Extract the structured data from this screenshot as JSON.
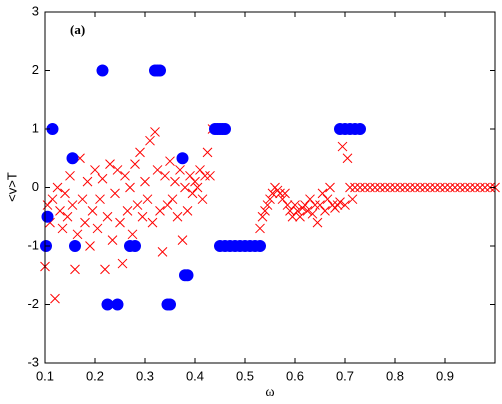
{
  "chart_data": {
    "type": "scatter",
    "annotation": "(a)",
    "xlabel": "ω",
    "ylabel": "<v>T",
    "xlim": [
      0.1,
      1.0
    ],
    "xticks": [
      0.1,
      0.2,
      0.3,
      0.4,
      0.5,
      0.6,
      0.7,
      0.8,
      0.9
    ],
    "ylim": [
      -3,
      3
    ],
    "yticks": [
      -3,
      -2,
      -1,
      0,
      1,
      2,
      3
    ],
    "series": [
      {
        "color": "#ff0000",
        "marker": "x",
        "x": [
          0.1,
          0.105,
          0.11,
          0.115,
          0.12,
          0.125,
          0.13,
          0.135,
          0.14,
          0.145,
          0.15,
          0.155,
          0.16,
          0.165,
          0.17,
          0.175,
          0.18,
          0.185,
          0.19,
          0.195,
          0.2,
          0.205,
          0.21,
          0.215,
          0.22,
          0.225,
          0.23,
          0.235,
          0.24,
          0.245,
          0.25,
          0.255,
          0.26,
          0.265,
          0.27,
          0.275,
          0.28,
          0.285,
          0.29,
          0.295,
          0.3,
          0.305,
          0.31,
          0.315,
          0.32,
          0.325,
          0.33,
          0.335,
          0.34,
          0.345,
          0.35,
          0.355,
          0.36,
          0.365,
          0.37,
          0.375,
          0.38,
          0.385,
          0.39,
          0.395,
          0.4,
          0.405,
          0.41,
          0.415,
          0.42,
          0.425,
          0.43,
          0.435,
          0.53,
          0.535,
          0.54,
          0.545,
          0.55,
          0.555,
          0.56,
          0.565,
          0.57,
          0.575,
          0.58,
          0.585,
          0.59,
          0.595,
          0.6,
          0.605,
          0.61,
          0.615,
          0.62,
          0.625,
          0.63,
          0.635,
          0.64,
          0.645,
          0.65,
          0.655,
          0.66,
          0.665,
          0.67,
          0.675,
          0.68,
          0.685,
          0.69,
          0.695,
          0.7,
          0.705,
          0.71,
          0.715,
          0.72,
          0.73,
          0.74,
          0.75,
          0.76,
          0.77,
          0.78,
          0.79,
          0.8,
          0.81,
          0.82,
          0.83,
          0.84,
          0.85,
          0.86,
          0.87,
          0.88,
          0.89,
          0.9,
          0.91,
          0.92,
          0.93,
          0.94,
          0.95,
          0.96,
          0.97,
          0.98,
          0.99,
          1.0
        ],
        "values": [
          -1.35,
          -0.3,
          -0.6,
          -0.2,
          -1.9,
          0.0,
          -0.4,
          -0.7,
          -0.1,
          -0.5,
          0.2,
          -0.3,
          -1.4,
          -0.8,
          0.5,
          -0.2,
          -0.6,
          0.1,
          -1.0,
          -0.4,
          0.3,
          -0.7,
          -0.2,
          0.15,
          -1.4,
          -0.5,
          0.4,
          -0.9,
          -0.1,
          0.3,
          -0.6,
          -1.3,
          0.2,
          -0.4,
          0.0,
          -0.8,
          0.4,
          -0.3,
          0.6,
          -0.5,
          0.1,
          -0.2,
          0.8,
          -0.6,
          0.95,
          0.3,
          -0.4,
          -1.1,
          0.2,
          -0.3,
          0.45,
          -0.2,
          0.1,
          -0.5,
          0.3,
          -0.9,
          0.0,
          -0.4,
          0.2,
          -0.1,
          0.1,
          0.0,
          0.3,
          -0.2,
          0.2,
          0.6,
          0.2,
          1.0,
          -0.7,
          -0.5,
          -0.4,
          -0.3,
          -0.2,
          -0.1,
          0.0,
          -0.05,
          -0.1,
          -0.2,
          -0.1,
          -0.3,
          -0.4,
          -0.5,
          -0.3,
          -0.4,
          -0.5,
          -0.35,
          -0.3,
          -0.4,
          -0.2,
          -0.45,
          -0.3,
          -0.6,
          -0.3,
          -0.1,
          -0.4,
          -0.2,
          0.0,
          -0.3,
          -0.35,
          -0.3,
          -0.25,
          0.7,
          -0.3,
          0.5,
          0.0,
          -0.2,
          0,
          0,
          0,
          0,
          0,
          0,
          0,
          0,
          0,
          0,
          0,
          0,
          0,
          0,
          0,
          0,
          0,
          0,
          0,
          0,
          0,
          0,
          0,
          0,
          0,
          0,
          0,
          0,
          0
        ]
      },
      {
        "color": "#0000ff",
        "marker": "o",
        "x": [
          0.102,
          0.105,
          0.115,
          0.155,
          0.16,
          0.215,
          0.225,
          0.245,
          0.27,
          0.28,
          0.32,
          0.325,
          0.33,
          0.345,
          0.35,
          0.375,
          0.38,
          0.385,
          0.44,
          0.445,
          0.45,
          0.455,
          0.46,
          0.45,
          0.46,
          0.47,
          0.48,
          0.49,
          0.5,
          0.51,
          0.52,
          0.53,
          0.69,
          0.7,
          0.71,
          0.72,
          0.73
        ],
        "values": [
          -1,
          -0.5,
          1,
          0.5,
          -1,
          2,
          -2,
          -2,
          -1,
          -1,
          2,
          2,
          2,
          -2,
          -2,
          0.5,
          -1.5,
          -1.5,
          1,
          1,
          1,
          1,
          1,
          -1,
          -1,
          -1,
          -1,
          -1,
          -1,
          -1,
          -1,
          -1,
          1,
          1,
          1,
          1,
          1
        ]
      }
    ]
  }
}
